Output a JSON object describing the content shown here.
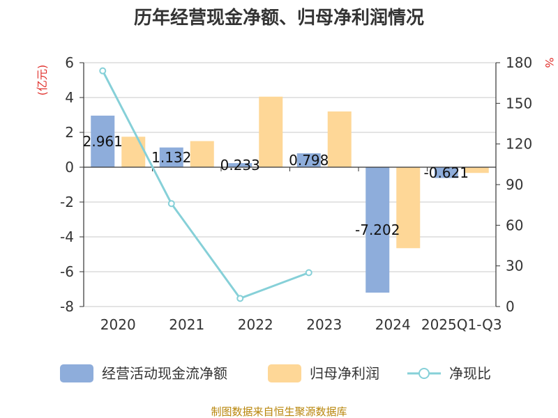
{
  "chart_data": {
    "type": "bar+line",
    "title": "历年经营现金净额、归母净利润情况",
    "categories": [
      "2020",
      "2021",
      "2022",
      "2023",
      "2024",
      "2025Q1-Q3"
    ],
    "series": [
      {
        "name": "经营活动现金流净额",
        "type": "bar",
        "axis": "left",
        "color": "#8eaddb",
        "values": [
          2.961,
          1.132,
          0.233,
          0.798,
          -7.202,
          -0.621
        ],
        "labels": [
          "2.961",
          "1.132",
          "0.233",
          "0.798",
          "-7.202",
          "-0.621"
        ]
      },
      {
        "name": "归母净利润",
        "type": "bar",
        "axis": "left",
        "color": "#fed797",
        "values": [
          1.75,
          1.5,
          4.05,
          3.2,
          -4.65,
          -0.33
        ]
      },
      {
        "name": "净现比",
        "type": "line",
        "axis": "right",
        "color": "#86d0d8",
        "values": [
          174,
          76,
          6,
          25,
          null,
          null
        ]
      }
    ],
    "yleft": {
      "label": "(亿元)",
      "min": -8,
      "max": 6,
      "ticks": [
        6,
        4,
        2,
        0,
        -2,
        -4,
        -6,
        -8
      ],
      "tick_labels": [
        "6",
        "4",
        "2",
        "0",
        "-2",
        "-4",
        "-6",
        "-8"
      ]
    },
    "yright": {
      "label": "%",
      "min": 0,
      "max": 180,
      "ticks": [
        180,
        150,
        120,
        90,
        60,
        30,
        0
      ],
      "tick_labels": [
        "180",
        "150",
        "120",
        "90",
        "60",
        "30",
        "0"
      ]
    },
    "source": "制图数据来自恒生聚源数据库"
  }
}
